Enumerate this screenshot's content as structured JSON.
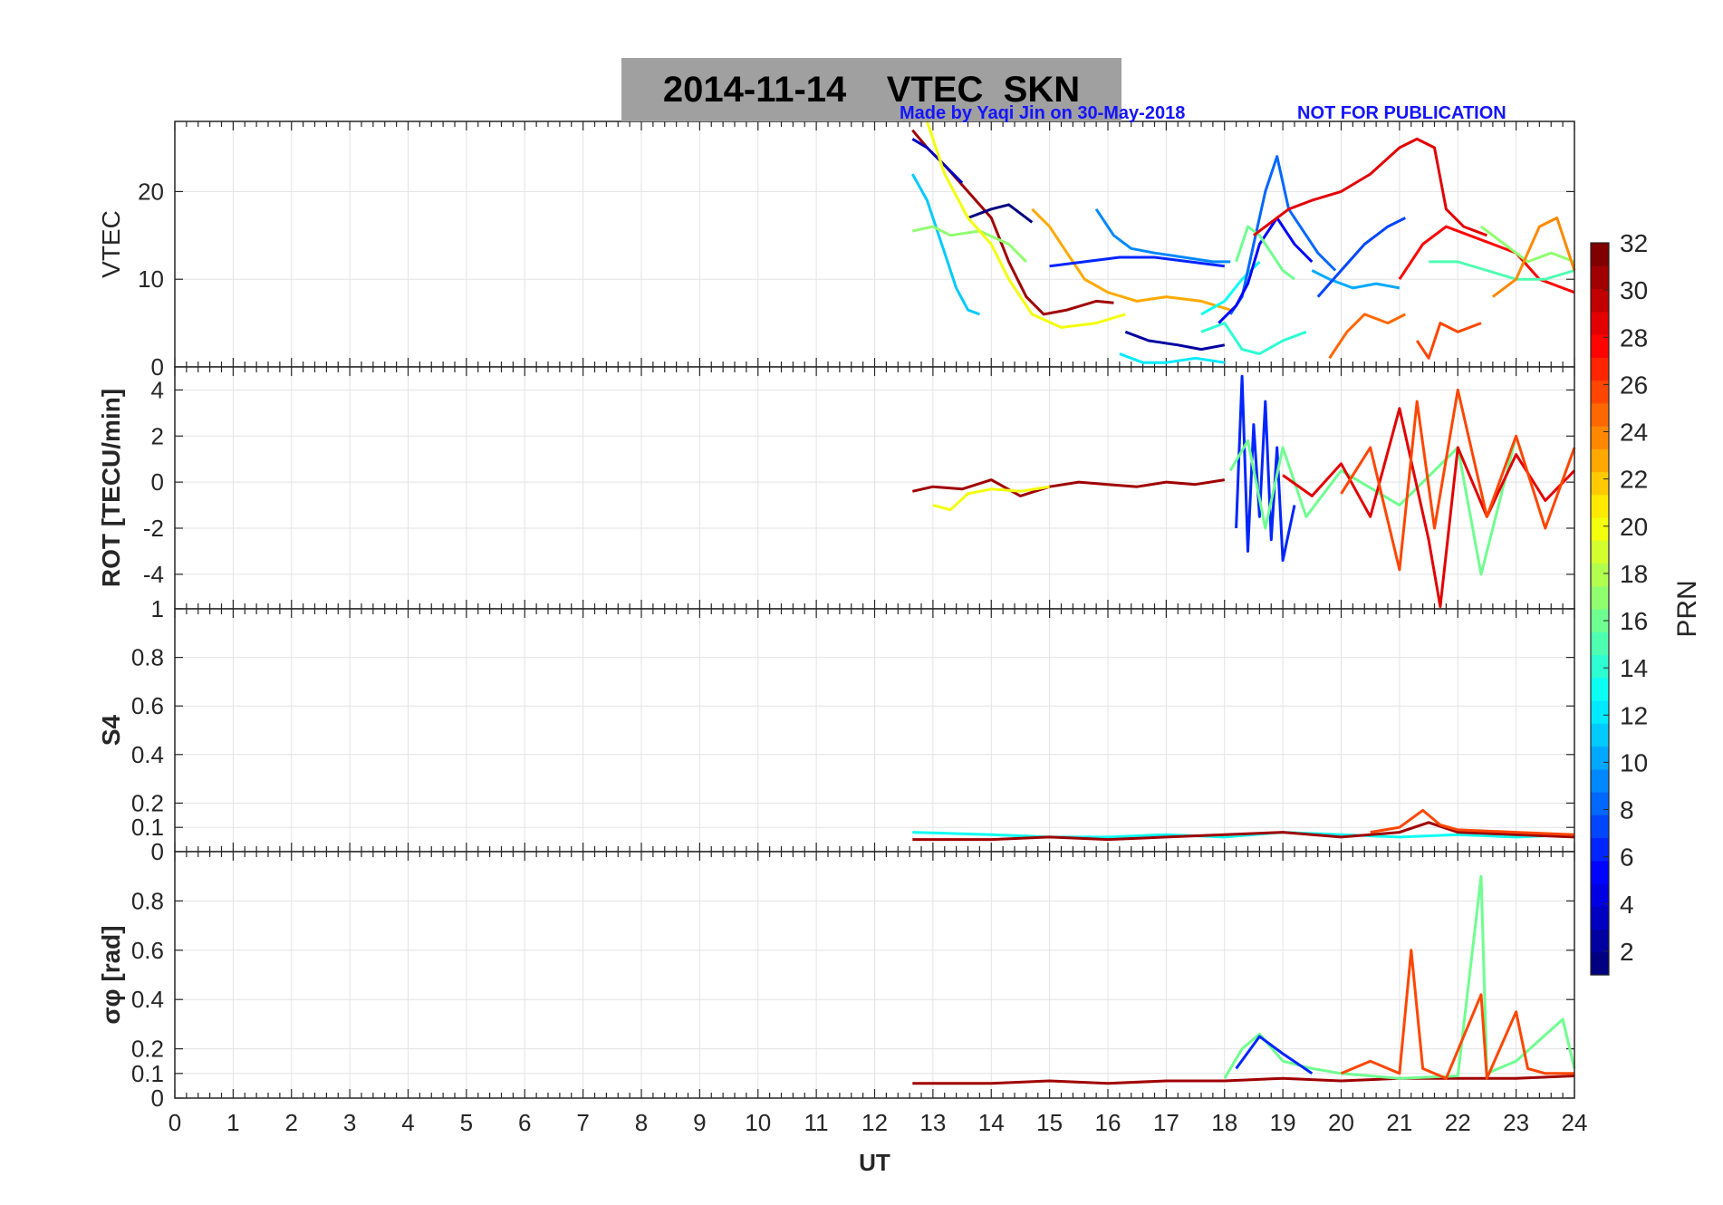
{
  "title": {
    "date": "2014-11-14",
    "label": "VTEC  SKN"
  },
  "credits": {
    "made_by": "Made by Yaqi Jin on 30-May-2018",
    "notice": "NOT FOR PUBLICATION"
  },
  "colors": {
    "credit": "#1414ff",
    "title_bg": "#a0a0a0",
    "grid": "#e3e3e3"
  },
  "chart_data": [
    {
      "type": "line",
      "panel": "VTEC",
      "ylabel": "VTEC",
      "ylim": [
        0,
        28
      ],
      "yticks": [
        0,
        10,
        20
      ],
      "xlim": [
        0,
        24
      ],
      "grid": true,
      "series": [
        {
          "prn": 31,
          "x": [
            12.65,
            12.9,
            13.2,
            13.6,
            14.0,
            14.3,
            14.6,
            14.9,
            15.3,
            15.8,
            16.1
          ],
          "y": [
            27,
            25,
            23,
            20,
            17,
            12,
            8,
            6,
            6.5,
            7.5,
            7.3
          ]
        },
        {
          "prn": 3,
          "x": [
            12.65,
            12.9,
            13.2,
            13.5
          ],
          "y": [
            26,
            25,
            23,
            21
          ]
        },
        {
          "prn": 1,
          "x": [
            13.6,
            14.0,
            14.3,
            14.7
          ],
          "y": [
            17,
            18,
            18.5,
            16.5
          ]
        },
        {
          "prn": 11,
          "x": [
            12.65,
            12.9,
            13.2,
            13.4,
            13.6,
            13.8
          ],
          "y": [
            22,
            19,
            13,
            9,
            6.5,
            6
          ]
        },
        {
          "prn": 17,
          "x": [
            12.65,
            13.0,
            13.3,
            13.8,
            14.3,
            14.6
          ],
          "y": [
            15.5,
            16,
            15,
            15.5,
            14,
            12
          ]
        },
        {
          "prn": 20,
          "x": [
            12.9,
            13.2,
            13.6,
            14.0,
            14.3,
            14.7,
            15.2,
            15.8,
            16.3
          ],
          "y": [
            28,
            22,
            17,
            14,
            10,
            6,
            4.5,
            5,
            6
          ]
        },
        {
          "prn": 23,
          "x": [
            14.7,
            15.0,
            15.3,
            15.6,
            16.0,
            16.5,
            17.0,
            17.6,
            18.1
          ],
          "y": [
            18,
            16,
            13,
            10,
            8.5,
            7.5,
            8,
            7.5,
            6.5
          ]
        },
        {
          "prn": 9,
          "x": [
            15.8,
            16.1,
            16.4,
            16.8,
            17.3,
            17.8,
            18.1
          ],
          "y": [
            18,
            15,
            13.5,
            13,
            12.5,
            12,
            12
          ]
        },
        {
          "prn": 6,
          "x": [
            15.0,
            15.6,
            16.2,
            16.8,
            17.4,
            18.0
          ],
          "y": [
            11.5,
            12,
            12.5,
            12.5,
            12,
            11.5
          ]
        },
        {
          "prn": 2,
          "x": [
            16.3,
            16.7,
            17.2,
            17.6,
            18.0
          ],
          "y": [
            4,
            3,
            2.5,
            2,
            2.5
          ]
        },
        {
          "prn": 12,
          "x": [
            16.2,
            16.6,
            17.0,
            17.5,
            18.0
          ],
          "y": [
            1.5,
            0.5,
            0.5,
            1,
            0.5
          ]
        },
        {
          "prn": 14,
          "x": [
            17.6,
            18.0,
            18.3,
            18.6,
            19.0,
            19.4
          ],
          "y": [
            4,
            5,
            2,
            1.5,
            3,
            4
          ]
        },
        {
          "prn": 13,
          "x": [
            17.6,
            18.0,
            18.3,
            18.6
          ],
          "y": [
            6,
            7.5,
            10,
            12
          ]
        },
        {
          "prn": 8,
          "x": [
            18.1,
            18.3,
            18.5,
            18.7,
            18.9,
            19.1,
            19.3,
            19.6,
            19.9
          ],
          "y": [
            6,
            8,
            14,
            20,
            24,
            18,
            16,
            13,
            11
          ]
        },
        {
          "prn": 5,
          "x": [
            17.9,
            18.2,
            18.4,
            18.6,
            18.9,
            19.2,
            19.5
          ],
          "y": [
            5,
            7,
            9.5,
            14,
            17,
            14,
            12
          ]
        },
        {
          "prn": 16,
          "x": [
            18.2,
            18.4,
            18.6,
            18.8,
            19.0,
            19.2
          ],
          "y": [
            12,
            16,
            15,
            13,
            11,
            10
          ]
        },
        {
          "prn": 10,
          "x": [
            19.5,
            19.8,
            20.2,
            20.6,
            21.0
          ],
          "y": [
            11,
            10,
            9,
            9.5,
            9
          ]
        },
        {
          "prn": 7,
          "x": [
            19.6,
            20.0,
            20.4,
            20.8,
            21.1
          ],
          "y": [
            8,
            11,
            14,
            16,
            17
          ]
        },
        {
          "prn": 29,
          "x": [
            18.5,
            18.8,
            19.1,
            19.5,
            20.0,
            20.5,
            21.0,
            21.3,
            21.6,
            21.8,
            22.1,
            22.5
          ],
          "y": [
            15,
            16.5,
            18,
            19,
            20,
            22,
            25,
            26,
            25,
            18,
            16,
            15
          ]
        },
        {
          "prn": 25,
          "x": [
            19.8,
            20.1,
            20.4,
            20.8,
            21.1
          ],
          "y": [
            1,
            4,
            6,
            5,
            6
          ]
        },
        {
          "prn": 26,
          "x": [
            21.3,
            21.5,
            21.7,
            22.0,
            22.4
          ],
          "y": [
            3,
            1,
            5,
            4,
            5
          ]
        },
        {
          "prn": 28,
          "x": [
            21.0,
            21.4,
            21.8,
            22.2,
            22.6,
            23.0,
            23.4,
            23.8,
            24.0
          ],
          "y": [
            10,
            14,
            16,
            15,
            14,
            13,
            10,
            9,
            8.5
          ]
        },
        {
          "prn": 15,
          "x": [
            21.5,
            22.0,
            22.5,
            23.0,
            23.5,
            24.0
          ],
          "y": [
            12,
            12,
            11,
            10,
            10,
            11
          ]
        },
        {
          "prn": 17,
          "x": [
            22.4,
            22.8,
            23.2,
            23.6,
            24.0
          ],
          "y": [
            16,
            14,
            12,
            13,
            12
          ]
        },
        {
          "prn": 24,
          "x": [
            22.6,
            23.0,
            23.4,
            23.7,
            24.0
          ],
          "y": [
            8,
            10,
            16,
            17,
            11
          ]
        }
      ]
    },
    {
      "type": "line",
      "panel": "ROT",
      "ylabel": "ROT [TECU/min]",
      "ylim": [
        -5.5,
        5
      ],
      "yticks": [
        -4,
        -2,
        0,
        2,
        4
      ],
      "xlim": [
        0,
        24
      ],
      "grid": true,
      "series": [
        {
          "prn": 31,
          "x": [
            12.65,
            13.0,
            13.5,
            14.0,
            14.5,
            15.0,
            15.5,
            16.0,
            16.5,
            17.0,
            17.5,
            18.0
          ],
          "y": [
            -0.4,
            -0.2,
            -0.3,
            0.1,
            -0.6,
            -0.2,
            0.0,
            -0.1,
            -0.2,
            0.0,
            -0.1,
            0.1
          ]
        },
        {
          "prn": 20,
          "x": [
            13.0,
            13.3,
            13.6,
            14.0,
            14.5,
            15.0
          ],
          "y": [
            -1.0,
            -1.2,
            -0.5,
            -0.3,
            -0.4,
            -0.2
          ]
        },
        {
          "prn": 6,
          "x": [
            18.2,
            18.3,
            18.4,
            18.5,
            18.6,
            18.7,
            18.8,
            18.9,
            19.0,
            19.2
          ],
          "y": [
            -2,
            4.6,
            -3,
            2.5,
            -1.5,
            3.5,
            -2.5,
            1.5,
            -3.4,
            -1
          ]
        },
        {
          "prn": 16,
          "x": [
            18.1,
            18.4,
            18.7,
            19.0,
            19.4,
            20.0,
            21.0,
            22.0,
            22.4,
            23.0
          ],
          "y": [
            0.5,
            1.8,
            -2,
            1.5,
            -1.5,
            0.5,
            -1,
            1.5,
            -4,
            2
          ]
        },
        {
          "prn": 29,
          "x": [
            19.0,
            19.5,
            20.0,
            20.5,
            21.0,
            21.5,
            21.7,
            22.0,
            22.5,
            23.0,
            23.5,
            24.0
          ],
          "y": [
            0.3,
            -0.6,
            0.8,
            -1.5,
            3.2,
            -2.5,
            -5.4,
            1.5,
            -1.5,
            1.2,
            -0.8,
            0.5
          ]
        },
        {
          "prn": 26,
          "x": [
            20.0,
            20.5,
            21.0,
            21.3,
            21.6,
            22.0,
            22.5,
            23.0,
            23.5,
            24.0
          ],
          "y": [
            -0.5,
            1.5,
            -3.8,
            3.5,
            -2,
            4,
            -1.5,
            2,
            -2,
            1.5
          ]
        }
      ]
    },
    {
      "type": "line",
      "panel": "S4",
      "ylabel": "S4",
      "ylim": [
        0,
        1
      ],
      "yticks": [
        0,
        0.1,
        0.2,
        0.4,
        0.6,
        0.8,
        1
      ],
      "xlim": [
        0,
        24
      ],
      "grid": true,
      "series": [
        {
          "prn": 13,
          "x": [
            12.65,
            14.0,
            15.0,
            16.0,
            17.0,
            18.0,
            19.0,
            20.0,
            21.0,
            22.0,
            23.0,
            24.0
          ],
          "y": [
            0.08,
            0.07,
            0.06,
            0.06,
            0.07,
            0.06,
            0.08,
            0.07,
            0.06,
            0.07,
            0.06,
            0.07
          ]
        },
        {
          "prn": 31,
          "x": [
            12.65,
            14.0,
            15.0,
            16.0,
            17.0,
            18.0,
            19.0,
            20.0,
            21.0,
            21.5,
            22.0,
            23.0,
            24.0
          ],
          "y": [
            0.05,
            0.05,
            0.06,
            0.05,
            0.06,
            0.07,
            0.08,
            0.06,
            0.08,
            0.12,
            0.08,
            0.07,
            0.06
          ]
        },
        {
          "prn": 26,
          "x": [
            20.5,
            21.0,
            21.4,
            21.7,
            22.0,
            23.0,
            24.0
          ],
          "y": [
            0.08,
            0.1,
            0.17,
            0.11,
            0.09,
            0.08,
            0.07
          ]
        }
      ]
    },
    {
      "type": "line",
      "panel": "sigma_phi",
      "ylabel": "σφ [rad]",
      "ylim": [
        0,
        1
      ],
      "yticks": [
        0,
        0.1,
        0.2,
        0.4,
        0.6,
        0.8
      ],
      "xlim": [
        0,
        24
      ],
      "grid": true,
      "series": [
        {
          "prn": 31,
          "x": [
            12.65,
            14.0,
            15.0,
            16.0,
            17.0,
            18.0,
            19.0,
            20.0,
            21.0,
            22.0,
            23.0,
            24.0
          ],
          "y": [
            0.06,
            0.06,
            0.07,
            0.06,
            0.07,
            0.07,
            0.08,
            0.07,
            0.08,
            0.08,
            0.08,
            0.09
          ]
        },
        {
          "prn": 16,
          "x": [
            18.0,
            18.3,
            18.6,
            19.0,
            19.5,
            20.0,
            21.0,
            22.0,
            22.4,
            22.5,
            23.0,
            23.8,
            24.0
          ],
          "y": [
            0.08,
            0.2,
            0.26,
            0.15,
            0.12,
            0.1,
            0.08,
            0.09,
            0.9,
            0.1,
            0.15,
            0.32,
            0.12
          ]
        },
        {
          "prn": 26,
          "x": [
            20.0,
            20.5,
            21.0,
            21.2,
            21.4,
            21.8,
            22.4,
            22.5,
            23.0,
            23.2,
            23.5,
            24.0
          ],
          "y": [
            0.1,
            0.15,
            0.1,
            0.6,
            0.12,
            0.08,
            0.42,
            0.08,
            0.35,
            0.12,
            0.1,
            0.1
          ]
        },
        {
          "prn": 6,
          "x": [
            18.2,
            18.6,
            19.0,
            19.5
          ],
          "y": [
            0.12,
            0.25,
            0.18,
            0.1
          ]
        }
      ]
    }
  ],
  "x_axis": {
    "label": "UT",
    "ticks": [
      "0",
      "1",
      "2",
      "3",
      "4",
      "5",
      "6",
      "7",
      "8",
      "9",
      "10",
      "11",
      "12",
      "13",
      "14",
      "15",
      "16",
      "17",
      "18",
      "19",
      "20",
      "21",
      "22",
      "23",
      "24"
    ]
  },
  "colorbar": {
    "label": "PRN",
    "min": 1,
    "max": 32,
    "ticks": [
      "2",
      "4",
      "6",
      "8",
      "10",
      "12",
      "14",
      "16",
      "18",
      "20",
      "22",
      "24",
      "26",
      "28",
      "30",
      "32"
    ]
  }
}
